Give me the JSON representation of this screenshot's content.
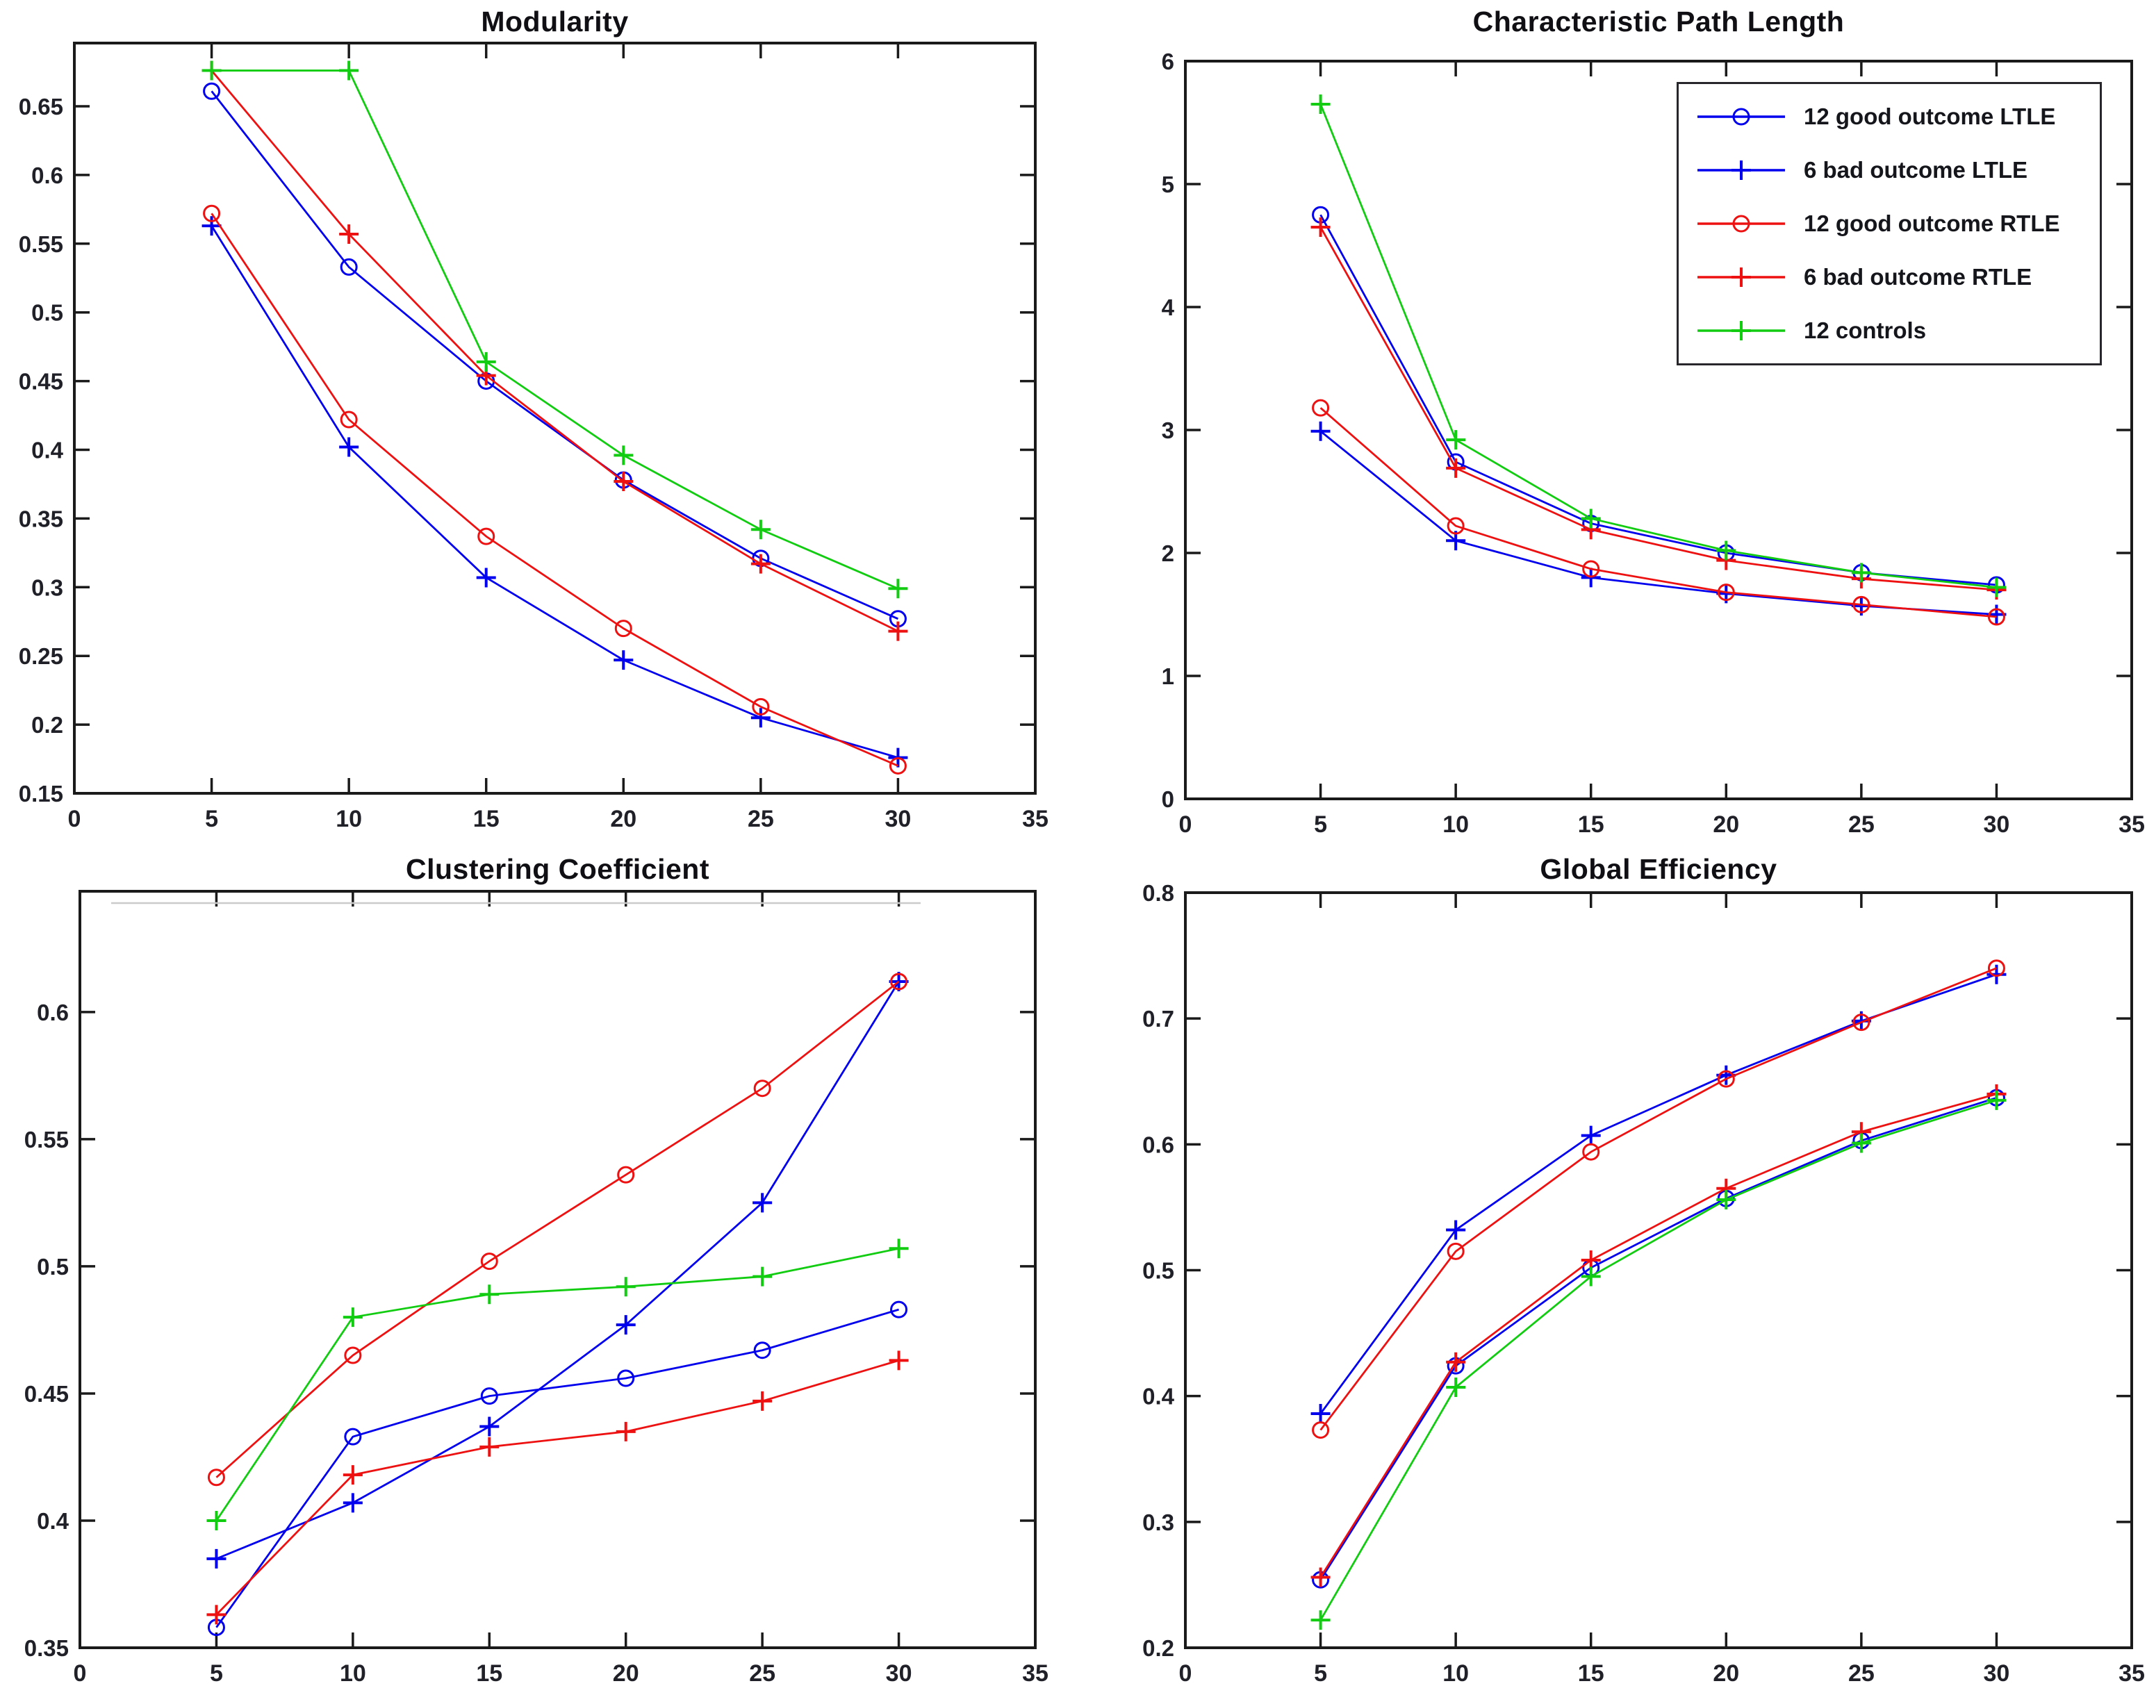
{
  "page": {
    "background": "#ffffff"
  },
  "colors": {
    "ltle": "#0000ee",
    "rtle": "#ee1111",
    "controls": "#11cc11",
    "axis": "#1a1a1a",
    "tick_text": "#202028"
  },
  "legend": {
    "position": "top-right-inside-characteristic-path-length",
    "entries": [
      {
        "label": "12 good outcome LTLE",
        "color": "#0000ee",
        "marker": "circle"
      },
      {
        "label": "6 bad outcome LTLE",
        "color": "#0000ee",
        "marker": "plus"
      },
      {
        "label": "12 good outcome RTLE",
        "color": "#ee1111",
        "marker": "circle"
      },
      {
        "label": "6 bad outcome RTLE",
        "color": "#ee1111",
        "marker": "plus"
      },
      {
        "label": "12 controls",
        "color": "#11cc11",
        "marker": "plus"
      }
    ]
  },
  "chart_data": [
    {
      "type": "line",
      "title": "Modularity",
      "x": [
        5,
        10,
        15,
        20,
        25,
        30
      ],
      "xlim": [
        0,
        35
      ],
      "ylim": [
        0.15,
        0.696
      ],
      "xticks": [
        0,
        5,
        10,
        15,
        20,
        25,
        30,
        35
      ],
      "xtick_labels": [
        "0",
        "5",
        "10",
        "15",
        "20",
        "25",
        "30",
        "35"
      ],
      "yticks": [
        0.15,
        0.2,
        0.25,
        0.3,
        0.35,
        0.4,
        0.45,
        0.5,
        0.55,
        0.6,
        0.65
      ],
      "ytick_labels": [
        "0.15",
        "0.2",
        "0.25",
        "0.3",
        "0.35",
        "0.4",
        "0.45",
        "0.5",
        "0.55",
        "0.6",
        "0.65"
      ],
      "grid": false,
      "series": [
        {
          "name": "12 good outcome LTLE",
          "color": "#0000ee",
          "marker": "circle",
          "values": [
            0.661,
            0.533,
            0.45,
            0.378,
            0.321,
            0.277
          ]
        },
        {
          "name": "6 bad outcome LTLE",
          "color": "#0000ee",
          "marker": "plus",
          "values": [
            0.563,
            0.402,
            0.307,
            0.247,
            0.205,
            0.176
          ]
        },
        {
          "name": "12 good outcome RTLE",
          "color": "#ee1111",
          "marker": "circle",
          "values": [
            0.572,
            0.422,
            0.337,
            0.27,
            0.213,
            0.17
          ]
        },
        {
          "name": "6 bad outcome RTLE",
          "color": "#ee1111",
          "marker": "plus",
          "values": [
            0.676,
            0.557,
            0.454,
            0.377,
            0.317,
            0.268
          ]
        },
        {
          "name": "12 controls",
          "color": "#11cc11",
          "marker": "plus",
          "values": [
            0.676,
            0.676,
            0.464,
            0.396,
            0.342,
            0.299
          ]
        }
      ]
    },
    {
      "type": "line",
      "title": "Characteristic Path Length",
      "x": [
        5,
        10,
        15,
        20,
        25,
        30
      ],
      "xlim": [
        0,
        35
      ],
      "ylim": [
        0,
        6
      ],
      "xticks": [
        0,
        5,
        10,
        15,
        20,
        25,
        30,
        35
      ],
      "xtick_labels": [
        "0",
        "5",
        "10",
        "15",
        "20",
        "25",
        "30",
        "35"
      ],
      "yticks": [
        0,
        1,
        2,
        3,
        4,
        5,
        6
      ],
      "ytick_labels": [
        "0",
        "1",
        "2",
        "3",
        "4",
        "5",
        "6"
      ],
      "grid": false,
      "has_legend": true,
      "series": [
        {
          "name": "12 good outcome LTLE",
          "color": "#0000ee",
          "marker": "circle",
          "values": [
            4.75,
            2.74,
            2.24,
            2.0,
            1.84,
            1.74
          ]
        },
        {
          "name": "6 bad outcome LTLE",
          "color": "#0000ee",
          "marker": "plus",
          "values": [
            2.99,
            2.1,
            1.8,
            1.67,
            1.57,
            1.5
          ]
        },
        {
          "name": "12 good outcome RTLE",
          "color": "#ee1111",
          "marker": "circle",
          "values": [
            3.18,
            2.22,
            1.87,
            1.68,
            1.58,
            1.48
          ]
        },
        {
          "name": "6 bad outcome RTLE",
          "color": "#ee1111",
          "marker": "plus",
          "values": [
            4.65,
            2.69,
            2.19,
            1.94,
            1.79,
            1.7
          ]
        },
        {
          "name": "12 controls",
          "color": "#11cc11",
          "marker": "plus",
          "values": [
            5.65,
            2.92,
            2.28,
            2.02,
            1.84,
            1.72
          ]
        }
      ]
    },
    {
      "type": "line",
      "title": "Clustering Coefficient",
      "x": [
        5,
        10,
        15,
        20,
        25,
        30
      ],
      "xlim": [
        0,
        35
      ],
      "ylim": [
        0.35,
        0.6475
      ],
      "xticks": [
        0,
        5,
        10,
        15,
        20,
        25,
        30,
        35
      ],
      "xtick_labels": [
        "0",
        "5",
        "10",
        "15",
        "20",
        "25",
        "30",
        "35"
      ],
      "yticks": [
        0.35,
        0.4,
        0.45,
        0.5,
        0.55,
        0.6
      ],
      "ytick_labels": [
        "0.35",
        "0.4",
        "0.45",
        "0.5",
        "0.55",
        "0.6"
      ],
      "grid": false,
      "faint_top_line": true,
      "series": [
        {
          "name": "12 good outcome LTLE",
          "color": "#0000ee",
          "marker": "circle",
          "values": [
            0.358,
            0.433,
            0.449,
            0.456,
            0.467,
            0.483
          ]
        },
        {
          "name": "6 bad outcome LTLE",
          "color": "#0000ee",
          "marker": "plus",
          "values": [
            0.385,
            0.407,
            0.437,
            0.477,
            0.525,
            0.612
          ]
        },
        {
          "name": "12 good outcome RTLE",
          "color": "#ee1111",
          "marker": "circle",
          "values": [
            0.417,
            0.465,
            0.502,
            0.536,
            0.57,
            0.612
          ]
        },
        {
          "name": "6 bad outcome RTLE",
          "color": "#ee1111",
          "marker": "plus",
          "values": [
            0.363,
            0.418,
            0.429,
            0.435,
            0.447,
            0.463
          ]
        },
        {
          "name": "12 controls",
          "color": "#11cc11",
          "marker": "plus",
          "values": [
            0.4,
            0.48,
            0.489,
            0.492,
            0.496,
            0.507
          ]
        }
      ]
    },
    {
      "type": "line",
      "title": "Global Efficiency",
      "x": [
        5,
        10,
        15,
        20,
        25,
        30
      ],
      "xlim": [
        0,
        35
      ],
      "ylim": [
        0.2,
        0.8
      ],
      "xticks": [
        0,
        5,
        10,
        15,
        20,
        25,
        30,
        35
      ],
      "xtick_labels": [
        "0",
        "5",
        "10",
        "15",
        "20",
        "25",
        "30",
        "35"
      ],
      "yticks": [
        0.2,
        0.3,
        0.4,
        0.5,
        0.6,
        0.7,
        0.8
      ],
      "ytick_labels": [
        "0.2",
        "0.3",
        "0.4",
        "0.5",
        "0.6",
        "0.7",
        "0.8"
      ],
      "grid": false,
      "series": [
        {
          "name": "12 good outcome LTLE",
          "color": "#0000ee",
          "marker": "circle",
          "values": [
            0.254,
            0.424,
            0.502,
            0.557,
            0.603,
            0.637
          ]
        },
        {
          "name": "6 bad outcome LTLE",
          "color": "#0000ee",
          "marker": "plus",
          "values": [
            0.386,
            0.532,
            0.607,
            0.655,
            0.698,
            0.735
          ]
        },
        {
          "name": "12 good outcome RTLE",
          "color": "#ee1111",
          "marker": "circle",
          "values": [
            0.373,
            0.515,
            0.594,
            0.652,
            0.697,
            0.74
          ]
        },
        {
          "name": "6 bad outcome RTLE",
          "color": "#ee1111",
          "marker": "plus",
          "values": [
            0.256,
            0.427,
            0.508,
            0.565,
            0.61,
            0.64
          ]
        },
        {
          "name": "12 controls",
          "color": "#11cc11",
          "marker": "plus",
          "values": [
            0.222,
            0.407,
            0.495,
            0.556,
            0.601,
            0.635
          ]
        }
      ]
    }
  ]
}
